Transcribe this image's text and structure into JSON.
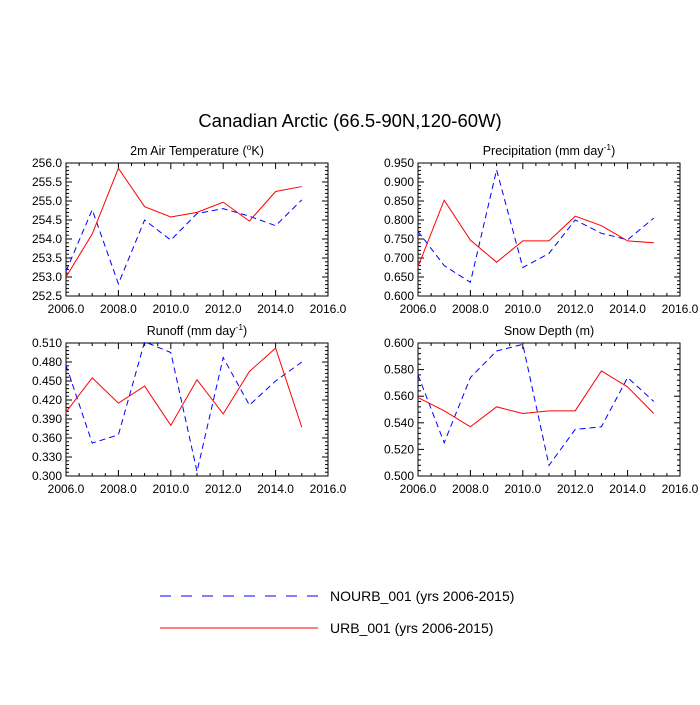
{
  "figure": {
    "title": "Canadian Arctic (66.5-90N,120-60W)"
  },
  "legend": {
    "items": [
      {
        "label": "NOURB_001 (yrs 2006-2015)",
        "color": "#0000ff",
        "style": "dashed"
      },
      {
        "label": "URB_001 (yrs 2006-2015)",
        "color": "#ff0000",
        "style": "solid"
      }
    ]
  },
  "chart_data": [
    {
      "type": "line",
      "title": "2m Air Temperature (°K)",
      "title_parts": {
        "pre": "2m Air Temperature (",
        "sup": "o",
        "post": "K)"
      },
      "xlim": [
        2006,
        2016
      ],
      "xticks": [
        2006,
        2008,
        2010,
        2012,
        2014,
        2016
      ],
      "xtick_labels": [
        "2006.0",
        "2008.0",
        "2010.0",
        "2012.0",
        "2014.0",
        "2016.0"
      ],
      "ylim": [
        252.5,
        256.0
      ],
      "yticks": [
        252.5,
        253.0,
        253.5,
        254.0,
        254.5,
        255.0,
        255.5,
        256.0
      ],
      "ytick_labels": [
        "252.5",
        "253.0",
        "253.5",
        "254.0",
        "254.5",
        "255.0",
        "255.5",
        "256.0"
      ],
      "x": [
        2006,
        2007,
        2008,
        2009,
        2010,
        2011,
        2012,
        2013,
        2014,
        2015
      ],
      "series": [
        {
          "name": "NOURB_001 (yrs 2006-2015)",
          "color": "#0000ff",
          "style": "dashed",
          "values": [
            253.15,
            254.77,
            252.82,
            254.5,
            253.97,
            254.67,
            254.8,
            254.6,
            254.35,
            255.03
          ]
        },
        {
          "name": "URB_001 (yrs 2006-2015)",
          "color": "#ff0000",
          "style": "solid",
          "values": [
            253.0,
            254.13,
            255.86,
            254.85,
            254.58,
            254.7,
            254.97,
            254.47,
            255.25,
            255.38
          ]
        }
      ]
    },
    {
      "type": "line",
      "title": "Precipitation (mm day-1)",
      "title_parts": {
        "pre": "Precipitation (mm day",
        "sup": "-1",
        "post": ")"
      },
      "xlim": [
        2006,
        2016
      ],
      "xticks": [
        2006,
        2008,
        2010,
        2012,
        2014,
        2016
      ],
      "xtick_labels": [
        "2006.0",
        "2008.0",
        "2010.0",
        "2012.0",
        "2014.0",
        "2016.0"
      ],
      "ylim": [
        0.6,
        0.95
      ],
      "yticks": [
        0.6,
        0.65,
        0.7,
        0.75,
        0.8,
        0.85,
        0.9,
        0.95
      ],
      "ytick_labels": [
        "0.600",
        "0.650",
        "0.700",
        "0.750",
        "0.800",
        "0.850",
        "0.900",
        "0.950"
      ],
      "x": [
        2006,
        2007,
        2008,
        2009,
        2010,
        2011,
        2012,
        2013,
        2014,
        2015
      ],
      "series": [
        {
          "name": "NOURB_001 (yrs 2006-2015)",
          "color": "#0000ff",
          "style": "dashed",
          "values": [
            0.77,
            0.68,
            0.636,
            0.932,
            0.675,
            0.712,
            0.8,
            0.765,
            0.748,
            0.805
          ]
        },
        {
          "name": "URB_001 (yrs 2006-2015)",
          "color": "#ff0000",
          "style": "solid",
          "values": [
            0.677,
            0.852,
            0.747,
            0.689,
            0.745,
            0.745,
            0.81,
            0.785,
            0.745,
            0.74
          ]
        }
      ]
    },
    {
      "type": "line",
      "title": "Runoff (mm day-1)",
      "title_parts": {
        "pre": "Runoff (mm day",
        "sup": "-1",
        "post": ")"
      },
      "xlim": [
        2006,
        2016
      ],
      "xticks": [
        2006,
        2008,
        2010,
        2012,
        2014,
        2016
      ],
      "xtick_labels": [
        "2006.0",
        "2008.0",
        "2010.0",
        "2012.0",
        "2014.0",
        "2016.0"
      ],
      "ylim": [
        0.3,
        0.51
      ],
      "yticks": [
        0.3,
        0.33,
        0.36,
        0.39,
        0.42,
        0.45,
        0.48,
        0.51
      ],
      "ytick_labels": [
        "0.300",
        "0.330",
        "0.360",
        "0.390",
        "0.420",
        "0.450",
        "0.480",
        "0.510"
      ],
      "x": [
        2006,
        2007,
        2008,
        2009,
        2010,
        2011,
        2012,
        2013,
        2014,
        2015
      ],
      "series": [
        {
          "name": "NOURB_001 (yrs 2006-2015)",
          "color": "#0000ff",
          "style": "dashed",
          "values": [
            0.475,
            0.352,
            0.365,
            0.512,
            0.495,
            0.307,
            0.487,
            0.412,
            0.45,
            0.48
          ]
        },
        {
          "name": "URB_001 (yrs 2006-2015)",
          "color": "#ff0000",
          "style": "solid",
          "values": [
            0.401,
            0.455,
            0.415,
            0.442,
            0.38,
            0.452,
            0.398,
            0.465,
            0.502,
            0.377
          ]
        }
      ]
    },
    {
      "type": "line",
      "title": "Snow Depth (m)",
      "title_parts": {
        "pre": "Snow Depth (m)",
        "sup": "",
        "post": ""
      },
      "xlim": [
        2006,
        2016
      ],
      "xticks": [
        2006,
        2008,
        2010,
        2012,
        2014,
        2016
      ],
      "xtick_labels": [
        "2006.0",
        "2008.0",
        "2010.0",
        "2012.0",
        "2014.0",
        "2016.0"
      ],
      "ylim": [
        0.5,
        0.6
      ],
      "yticks": [
        0.5,
        0.52,
        0.54,
        0.56,
        0.58,
        0.6
      ],
      "ytick_labels": [
        "0.500",
        "0.520",
        "0.540",
        "0.560",
        "0.580",
        "0.600"
      ],
      "x": [
        2006,
        2007,
        2008,
        2009,
        2010,
        2011,
        2012,
        2013,
        2014,
        2015
      ],
      "series": [
        {
          "name": "NOURB_001 (yrs 2006-2015)",
          "color": "#0000ff",
          "style": "dashed",
          "values": [
            0.576,
            0.525,
            0.574,
            0.594,
            0.599,
            0.508,
            0.535,
            0.537,
            0.574,
            0.556
          ]
        },
        {
          "name": "URB_001 (yrs 2006-2015)",
          "color": "#ff0000",
          "style": "solid",
          "values": [
            0.559,
            0.549,
            0.537,
            0.552,
            0.547,
            0.549,
            0.549,
            0.579,
            0.567,
            0.547
          ]
        }
      ]
    }
  ]
}
